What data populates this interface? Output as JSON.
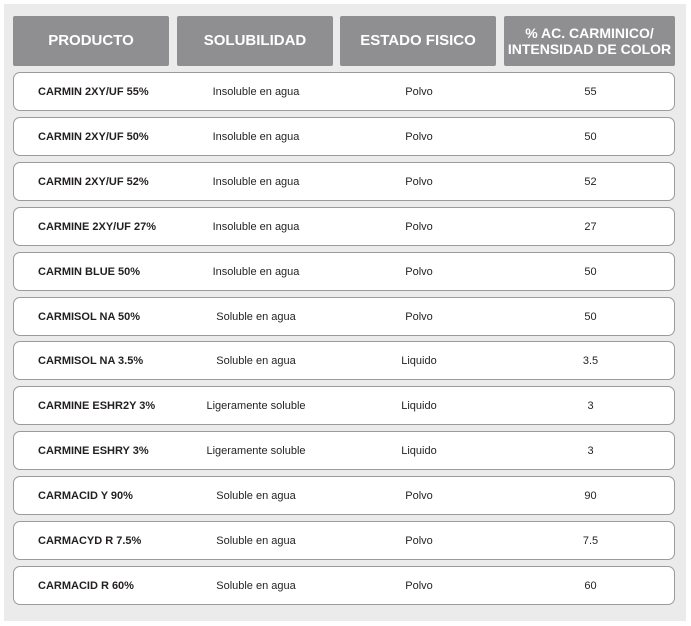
{
  "table": {
    "headers": [
      "PRODUCTO",
      "SOLUBILIDAD",
      "ESTADO FISICO",
      "% AC. CARMINICO/\nINTENSIDAD DE COLOR"
    ],
    "rows": [
      [
        "CARMIN 2XY/UF 55%",
        "Insoluble en agua",
        "Polvo",
        "55"
      ],
      [
        "CARMIN 2XY/UF 50%",
        "Insoluble en agua",
        "Polvo",
        "50"
      ],
      [
        "CARMIN 2XY/UF 52%",
        "Insoluble en agua",
        "Polvo",
        "52"
      ],
      [
        "CARMINE 2XY/UF  27%",
        "Insoluble en agua",
        "Polvo",
        "27"
      ],
      [
        "CARMIN BLUE 50%",
        "Insoluble en agua",
        "Polvo",
        "50"
      ],
      [
        "CARMISOL  NA 50%",
        "Soluble en agua",
        "Polvo",
        "50"
      ],
      [
        "CARMISOL NA  3.5%",
        "Soluble en agua",
        "Liquido",
        "3.5"
      ],
      [
        "CARMINE  ESHR2Y 3%",
        "Ligeramente soluble",
        "Liquido",
        "3"
      ],
      [
        "CARMINE  ESHRY 3%",
        "Ligeramente soluble",
        "Liquido",
        "3"
      ],
      [
        "CARMACID  Y 90%",
        "Soluble en agua",
        "Polvo",
        "90"
      ],
      [
        "CARMACYD  R 7.5%",
        "Soluble en agua",
        "Polvo",
        "7.5"
      ],
      [
        "CARMACID  R 60%",
        "Soluble en agua",
        "Polvo",
        "60"
      ]
    ]
  },
  "colors": {
    "header_bg": "#8f8f91",
    "panel_bg": "#ebebeb",
    "row_border": "#9b9b9d"
  }
}
